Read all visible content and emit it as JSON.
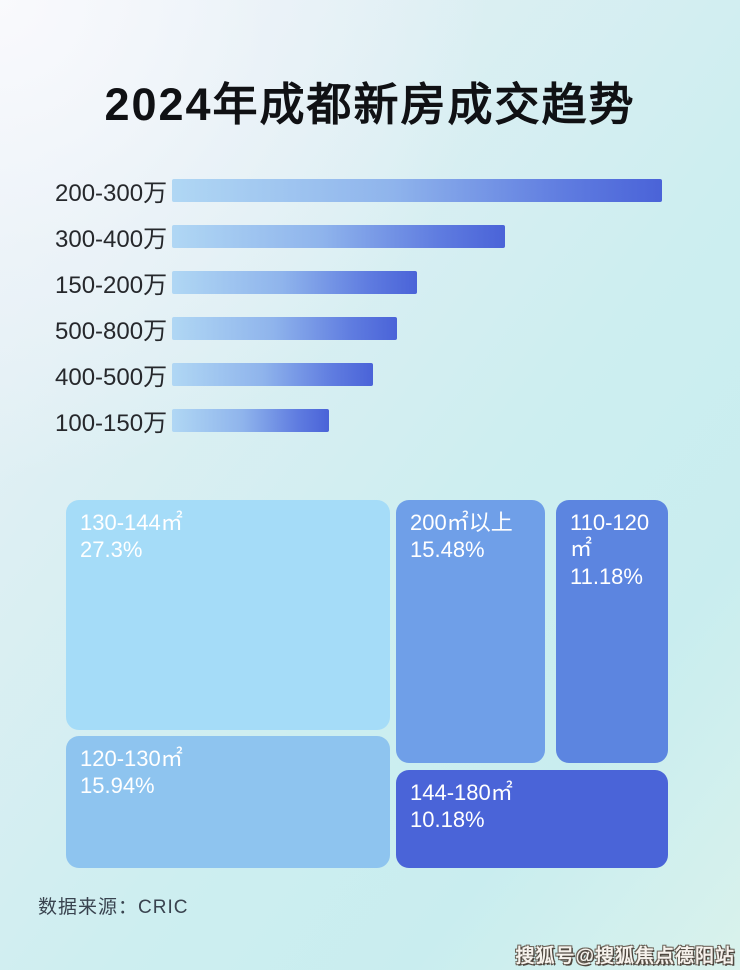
{
  "title": "2024年成都新房成交趋势",
  "chart_data": [
    {
      "type": "bar",
      "orientation": "horizontal",
      "categories": [
        "200-300万",
        "300-400万",
        "150-200万",
        "500-800万",
        "400-500万",
        "100-150万"
      ],
      "values": [
        100,
        68,
        50,
        46,
        41,
        32
      ],
      "value_unit": "relative bar length (% of longest bar); no numeric axis shown in image",
      "bar_gradient": [
        "#b0d7f4",
        "#4a63d8"
      ],
      "label_color": "#26282c"
    },
    {
      "type": "treemap",
      "items": [
        {
          "label": "130-144㎡",
          "value": "27.3%",
          "color": "#a5dcf8"
        },
        {
          "label": "200㎡以上",
          "value": "15.48%",
          "color": "#6f9fe8"
        },
        {
          "label": "110-120㎡",
          "value": "11.18%",
          "color": "#5c85e0"
        },
        {
          "label": "120-130㎡",
          "value": "15.94%",
          "color": "#8ec4ef"
        },
        {
          "label": "144-180㎡",
          "value": "10.18%",
          "color": "#4a64d8"
        }
      ],
      "text_color": "#ffffff"
    }
  ],
  "footer": {
    "source_label": "数据来源：CRIC"
  },
  "watermark": "搜狐号@搜狐焦点德阳站"
}
